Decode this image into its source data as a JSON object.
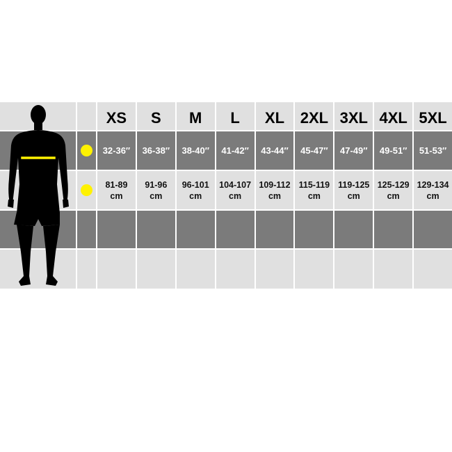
{
  "sizes": [
    "XS",
    "S",
    "M",
    "L",
    "XL",
    "2XL",
    "3XL",
    "4XL",
    "5XL"
  ],
  "chest_inches": [
    "32-36″",
    "36-38″",
    "38-40″",
    "41-42″",
    "43-44″",
    "45-47″",
    "47-49″",
    "49-51″",
    "51-53″"
  ],
  "chest_cm": [
    "81-89",
    "91-96",
    "96-101",
    "104-107",
    "109-112",
    "115-119",
    "119-125",
    "125-129",
    "129-134"
  ],
  "cm_unit": "cm",
  "figure_icon": "male-silhouette-icon",
  "marker_icon": "yellow-dot-icon",
  "colors": {
    "marker": "#fff200",
    "light_row": "#e0e0e0",
    "dark_row": "#7b7b7b"
  }
}
